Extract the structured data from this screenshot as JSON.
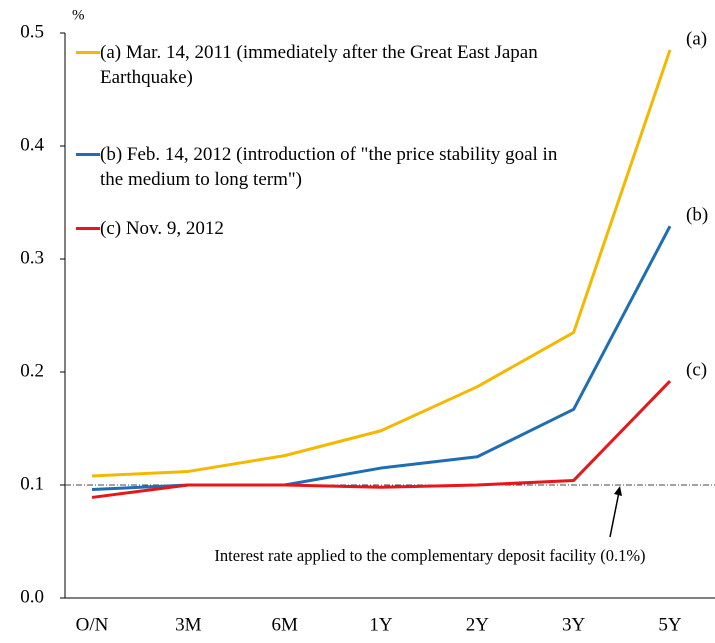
{
  "chart_data": {
    "type": "line",
    "y_unit": "%",
    "categories": [
      "O/N",
      "3M",
      "6M",
      "1Y",
      "2Y",
      "3Y",
      "5Y"
    ],
    "series": [
      {
        "name": "(a) Mar. 14, 2011 (immediately after the Great East Japan Earthquake)",
        "label": "(a)",
        "color": "#f5b800",
        "values": [
          0.108,
          0.112,
          0.126,
          0.148,
          0.187,
          0.235,
          0.485
        ]
      },
      {
        "name": "(b) Feb. 14, 2012 (introduction of \"the price stability goal in the medium to long term\")",
        "label": "(b)",
        "color": "#1f6db3",
        "values": [
          0.096,
          0.1,
          0.1,
          0.115,
          0.125,
          0.167,
          0.329
        ]
      },
      {
        "name": "(c) Nov. 9, 2012",
        "label": "(c)",
        "color": "#e8161b",
        "values": [
          0.089,
          0.1,
          0.1,
          0.098,
          0.1,
          0.104,
          0.192
        ]
      }
    ],
    "reference_line": {
      "value": 0.1,
      "label": "Interest rate applied to the complementary deposit facility (0.1%)"
    },
    "ylim": [
      0,
      0.5
    ],
    "yticks": [
      {
        "value": 0,
        "label": "0.0"
      },
      0.1,
      0.2,
      0.3,
      0.4,
      0.5
    ],
    "legend": "top-left"
  }
}
